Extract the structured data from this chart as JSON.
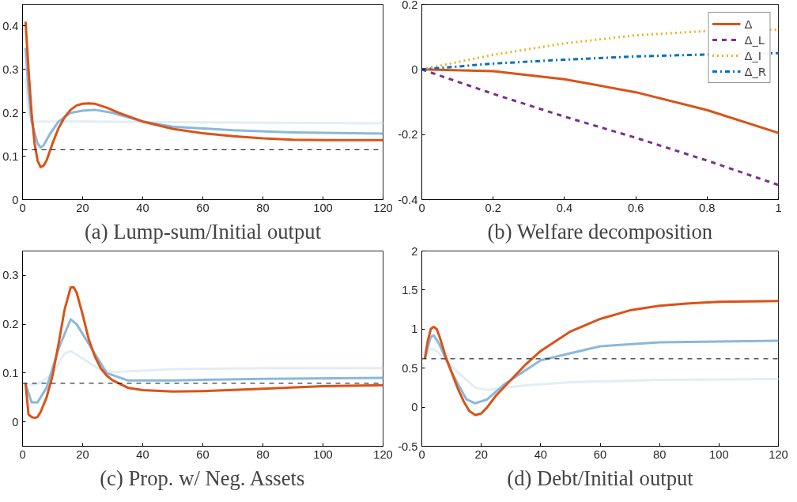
{
  "chart_data": [
    {
      "type": "line",
      "title": "(a) Lump-sum/Initial output",
      "xlim": [
        0,
        120
      ],
      "xticks": [
        0,
        20,
        40,
        60,
        80,
        100,
        120
      ],
      "ylim": [
        0,
        0.45
      ],
      "yticks": [
        0,
        0.1,
        0.2,
        0.3,
        0.4
      ],
      "grid": false,
      "legend": false,
      "line_style": "solid",
      "ref_lines": [
        {
          "axis": "y",
          "value": 0.115,
          "color": "#000000",
          "line_style": "dashed"
        }
      ],
      "series": [
        {
          "color": "#e3edf6",
          "x": [
            1,
            2,
            3,
            20,
            60,
            120
          ],
          "values": [
            0.28,
            0.2,
            0.18,
            0.18,
            0.178,
            0.176
          ]
        },
        {
          "color": "#8ab8dc",
          "x": [
            1,
            2,
            3,
            5,
            6,
            7,
            9,
            12,
            16,
            20,
            24,
            30,
            40,
            50,
            70,
            90,
            120
          ],
          "values": [
            0.35,
            0.25,
            0.18,
            0.13,
            0.12,
            0.125,
            0.15,
            0.18,
            0.2,
            0.205,
            0.207,
            0.2,
            0.18,
            0.168,
            0.16,
            0.155,
            0.152
          ]
        },
        {
          "color": "#d95319",
          "x": [
            1,
            2,
            3,
            4,
            5,
            6,
            7,
            8,
            10,
            12,
            14,
            16,
            18,
            20,
            22,
            24,
            28,
            32,
            36,
            40,
            50,
            60,
            70,
            80,
            90,
            100,
            120
          ],
          "values": [
            0.41,
            0.3,
            0.2,
            0.13,
            0.09,
            0.075,
            0.078,
            0.09,
            0.13,
            0.165,
            0.19,
            0.207,
            0.217,
            0.221,
            0.222,
            0.221,
            0.212,
            0.2,
            0.19,
            0.18,
            0.163,
            0.153,
            0.146,
            0.141,
            0.138,
            0.137,
            0.137
          ]
        }
      ]
    },
    {
      "type": "line",
      "title": "(b) Welfare decomposition",
      "xlim": [
        0,
        1
      ],
      "xticks": [
        0,
        0.2,
        0.4,
        0.6,
        0.8,
        1
      ],
      "ylim": [
        -0.4,
        0.2
      ],
      "yticks": [
        -0.4,
        -0.2,
        0,
        0.2
      ],
      "grid": false,
      "legend": "top right",
      "series": [
        {
          "name": "Δ",
          "color": "#d95319",
          "line_style": "solid",
          "x": [
            0,
            0.2,
            0.4,
            0.6,
            0.8,
            1
          ],
          "values": [
            0,
            -0.005,
            -0.03,
            -0.07,
            -0.125,
            -0.195
          ]
        },
        {
          "name": "Δ_L",
          "color": "#7e2f8e",
          "line_style": "dashed",
          "x": [
            0,
            0.2,
            0.4,
            0.6,
            0.8,
            1
          ],
          "values": [
            0,
            -0.075,
            -0.145,
            -0.21,
            -0.28,
            -0.355
          ]
        },
        {
          "name": "Δ_I",
          "color": "#edb120",
          "line_style": "dotted",
          "x": [
            0,
            0.2,
            0.4,
            0.6,
            0.8,
            1
          ],
          "values": [
            0,
            0.045,
            0.08,
            0.105,
            0.118,
            0.122
          ]
        },
        {
          "name": "Δ_R",
          "color": "#0072bd",
          "line_style": "dashdot",
          "x": [
            0,
            0.2,
            0.4,
            0.6,
            0.8,
            1
          ],
          "values": [
            0,
            0.018,
            0.03,
            0.04,
            0.046,
            0.05
          ]
        }
      ]
    },
    {
      "type": "line",
      "title": "(c) Prop. w/ Neg. Assets",
      "xlim": [
        0,
        120
      ],
      "xticks": [
        0,
        20,
        40,
        60,
        80,
        100,
        120
      ],
      "ylim": [
        -0.05,
        0.35
      ],
      "yticks": [
        0,
        0.1,
        0.2,
        0.3
      ],
      "grid": false,
      "legend": false,
      "line_style": "solid",
      "ref_lines": [
        {
          "axis": "y",
          "value": 0.079,
          "color": "#000000",
          "line_style": "dashed"
        }
      ],
      "series": [
        {
          "color": "#e3edf6",
          "x": [
            1,
            3,
            6,
            10,
            14,
            16,
            20,
            25,
            30,
            50,
            80,
            120
          ],
          "values": [
            0.079,
            0.075,
            0.08,
            0.1,
            0.14,
            0.145,
            0.13,
            0.11,
            0.102,
            0.108,
            0.11,
            0.11
          ]
        },
        {
          "color": "#8ab8dc",
          "x": [
            1,
            3,
            5,
            8,
            12,
            16,
            18,
            22,
            28,
            35,
            50,
            80,
            120
          ],
          "values": [
            0.079,
            0.04,
            0.04,
            0.07,
            0.15,
            0.21,
            0.2,
            0.16,
            0.1,
            0.085,
            0.085,
            0.088,
            0.09
          ]
        },
        {
          "color": "#d95319",
          "x": [
            1,
            2,
            3,
            4,
            5,
            6,
            8,
            10,
            12,
            14,
            16,
            17,
            18,
            20,
            22,
            24,
            26,
            28,
            30,
            35,
            40,
            50,
            60,
            80,
            100,
            120
          ],
          "values": [
            0.079,
            0.015,
            0.01,
            0.008,
            0.01,
            0.02,
            0.05,
            0.095,
            0.16,
            0.23,
            0.275,
            0.276,
            0.265,
            0.22,
            0.17,
            0.135,
            0.11,
            0.095,
            0.085,
            0.07,
            0.065,
            0.062,
            0.063,
            0.068,
            0.073,
            0.075
          ]
        }
      ]
    },
    {
      "type": "line",
      "title": "(d) Debt/Initial output",
      "xlim": [
        0,
        120
      ],
      "xticks": [
        0,
        20,
        40,
        60,
        80,
        100,
        120
      ],
      "ylim": [
        -0.5,
        2
      ],
      "yticks": [
        -0.5,
        0,
        0.5,
        1,
        1.5,
        2
      ],
      "grid": false,
      "legend": false,
      "line_style": "solid",
      "ref_lines": [
        {
          "axis": "y",
          "value": 0.62,
          "color": "#000000",
          "line_style": "dashed"
        }
      ],
      "series": [
        {
          "color": "#e3edf6",
          "x": [
            1,
            3,
            5,
            8,
            12,
            18,
            22,
            28,
            35,
            50,
            80,
            120
          ],
          "values": [
            0.62,
            0.75,
            0.72,
            0.6,
            0.45,
            0.25,
            0.22,
            0.25,
            0.28,
            0.32,
            0.35,
            0.36
          ]
        },
        {
          "color": "#8ab8dc",
          "x": [
            1,
            3,
            4,
            6,
            10,
            15,
            18,
            22,
            28,
            40,
            60,
            80,
            120
          ],
          "values": [
            0.62,
            0.9,
            0.92,
            0.8,
            0.45,
            0.1,
            0.05,
            0.1,
            0.3,
            0.6,
            0.78,
            0.83,
            0.85
          ]
        },
        {
          "color": "#d95319",
          "x": [
            1,
            2,
            3,
            4,
            5,
            6,
            8,
            10,
            12,
            14,
            16,
            18,
            20,
            22,
            25,
            30,
            35,
            40,
            50,
            60,
            70,
            80,
            90,
            100,
            120
          ],
          "values": [
            0.62,
            0.85,
            1.0,
            1.03,
            1.0,
            0.9,
            0.65,
            0.45,
            0.25,
            0.08,
            -0.05,
            -0.1,
            -0.08,
            0.0,
            0.15,
            0.35,
            0.55,
            0.72,
            0.97,
            1.13,
            1.24,
            1.3,
            1.33,
            1.35,
            1.36
          ]
        }
      ]
    }
  ]
}
